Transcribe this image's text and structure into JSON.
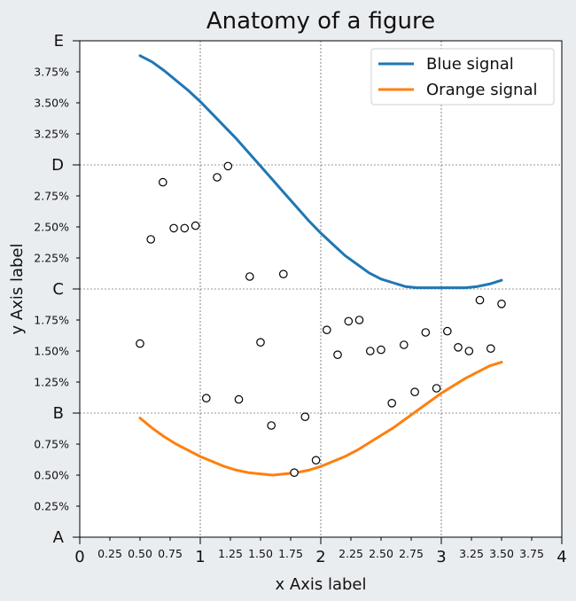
{
  "chart_data": {
    "type": "line",
    "title": "Anatomy of a figure",
    "xlabel": "x Axis label",
    "ylabel": "y Axis label",
    "xlim": [
      0,
      4
    ],
    "ylim": [
      0,
      4
    ],
    "x_major_ticks": [
      {
        "v": 0,
        "label": "0"
      },
      {
        "v": 1,
        "label": "1"
      },
      {
        "v": 2,
        "label": "2"
      },
      {
        "v": 3,
        "label": "3"
      },
      {
        "v": 4,
        "label": "4"
      }
    ],
    "x_minor_ticks": [
      {
        "v": 0.25,
        "label": "0.25"
      },
      {
        "v": 0.5,
        "label": "0.50"
      },
      {
        "v": 0.75,
        "label": "0.75"
      },
      {
        "v": 1.25,
        "label": "1.25"
      },
      {
        "v": 1.5,
        "label": "1.50"
      },
      {
        "v": 1.75,
        "label": "1.75"
      },
      {
        "v": 2.25,
        "label": "2.25"
      },
      {
        "v": 2.5,
        "label": "2.50"
      },
      {
        "v": 2.75,
        "label": "2.75"
      },
      {
        "v": 3.25,
        "label": "3.25"
      },
      {
        "v": 3.5,
        "label": "3.50"
      },
      {
        "v": 3.75,
        "label": "3.75"
      }
    ],
    "y_major_ticks": [
      {
        "v": 0,
        "label": "A"
      },
      {
        "v": 1,
        "label": "B"
      },
      {
        "v": 2,
        "label": "C"
      },
      {
        "v": 3,
        "label": "D"
      },
      {
        "v": 4,
        "label": "E"
      }
    ],
    "y_minor_ticks": [
      {
        "v": 0.25,
        "label": "0.25%"
      },
      {
        "v": 0.5,
        "label": "0.50%"
      },
      {
        "v": 0.75,
        "label": "0.75%"
      },
      {
        "v": 1.25,
        "label": "1.25%"
      },
      {
        "v": 1.5,
        "label": "1.50%"
      },
      {
        "v": 1.75,
        "label": "1.75%"
      },
      {
        "v": 2.25,
        "label": "2.25%"
      },
      {
        "v": 2.5,
        "label": "2.50%"
      },
      {
        "v": 2.75,
        "label": "2.75%"
      },
      {
        "v": 3.25,
        "label": "3.25%"
      },
      {
        "v": 3.5,
        "label": "3.50%"
      },
      {
        "v": 3.75,
        "label": "3.75%"
      }
    ],
    "grid": "major, dashed",
    "legend_position": "top-right",
    "series": [
      {
        "name": "Blue signal",
        "color": "#1f77b4",
        "x": [
          0.5,
          0.6,
          0.7,
          0.8,
          0.9,
          1.0,
          1.1,
          1.2,
          1.3,
          1.4,
          1.5,
          1.6,
          1.7,
          1.8,
          1.9,
          2.0,
          2.1,
          2.2,
          2.3,
          2.4,
          2.5,
          2.6,
          2.7,
          2.8,
          2.9,
          3.0,
          3.1,
          3.2,
          3.3,
          3.4,
          3.5
        ],
        "y": [
          3.88,
          3.83,
          3.76,
          3.68,
          3.6,
          3.51,
          3.41,
          3.31,
          3.21,
          3.1,
          2.99,
          2.88,
          2.77,
          2.66,
          2.55,
          2.45,
          2.36,
          2.27,
          2.2,
          2.13,
          2.08,
          2.05,
          2.02,
          2.01,
          2.01,
          2.01,
          2.01,
          2.01,
          2.02,
          2.04,
          2.07
        ]
      },
      {
        "name": "Orange signal",
        "color": "#ff7f0e",
        "x": [
          0.5,
          0.6,
          0.7,
          0.8,
          0.9,
          1.0,
          1.1,
          1.2,
          1.3,
          1.4,
          1.5,
          1.6,
          1.7,
          1.8,
          1.9,
          2.0,
          2.1,
          2.2,
          2.3,
          2.4,
          2.5,
          2.6,
          2.7,
          2.8,
          2.9,
          3.0,
          3.1,
          3.2,
          3.3,
          3.4,
          3.5
        ],
        "y": [
          0.96,
          0.88,
          0.81,
          0.75,
          0.7,
          0.65,
          0.61,
          0.57,
          0.54,
          0.52,
          0.51,
          0.5,
          0.51,
          0.52,
          0.54,
          0.57,
          0.61,
          0.65,
          0.7,
          0.76,
          0.82,
          0.88,
          0.95,
          1.02,
          1.09,
          1.16,
          1.22,
          1.28,
          1.33,
          1.38,
          1.41
        ]
      }
    ],
    "scatter": {
      "marker": "open-circle",
      "x": [
        0.5,
        0.59,
        0.69,
        0.78,
        0.87,
        0.96,
        1.05,
        1.14,
        1.23,
        1.32,
        1.41,
        1.5,
        1.59,
        1.69,
        1.78,
        1.87,
        1.96,
        2.05,
        2.14,
        2.23,
        2.32,
        2.41,
        2.5,
        2.59,
        2.69,
        2.78,
        2.87,
        2.96,
        3.05,
        3.14,
        3.23,
        3.32,
        3.41,
        3.5
      ],
      "y": [
        1.56,
        2.4,
        2.86,
        2.49,
        2.49,
        2.51,
        1.12,
        2.9,
        2.99,
        1.11,
        2.1,
        1.57,
        0.9,
        2.12,
        0.52,
        0.97,
        0.62,
        1.67,
        1.47,
        1.74,
        1.75,
        1.5,
        1.51,
        1.08,
        1.55,
        1.17,
        1.65,
        1.2,
        1.66,
        1.53,
        1.5,
        1.91,
        1.52,
        1.88
      ]
    }
  }
}
